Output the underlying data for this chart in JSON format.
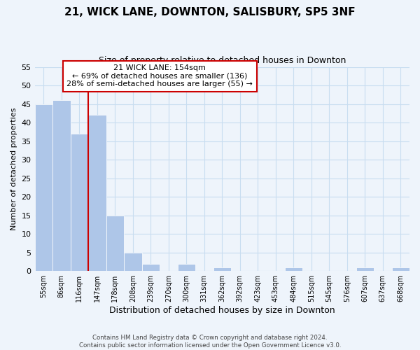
{
  "title": "21, WICK LANE, DOWNTON, SALISBURY, SP5 3NF",
  "subtitle": "Size of property relative to detached houses in Downton",
  "xlabel": "Distribution of detached houses by size in Downton",
  "ylabel": "Number of detached properties",
  "bin_labels": [
    "55sqm",
    "86sqm",
    "116sqm",
    "147sqm",
    "178sqm",
    "208sqm",
    "239sqm",
    "270sqm",
    "300sqm",
    "331sqm",
    "362sqm",
    "392sqm",
    "423sqm",
    "453sqm",
    "484sqm",
    "515sqm",
    "545sqm",
    "576sqm",
    "607sqm",
    "637sqm",
    "668sqm"
  ],
  "bar_values": [
    45,
    46,
    37,
    42,
    15,
    5,
    2,
    0,
    2,
    0,
    1,
    0,
    0,
    0,
    1,
    0,
    0,
    0,
    1,
    0,
    1
  ],
  "bar_color": "#aec6e8",
  "bar_edge_color": "white",
  "grid_color": "#c8ddf0",
  "property_line_x": 3,
  "annotation_line1": "21 WICK LANE: 154sqm",
  "annotation_line2": "← 69% of detached houses are smaller (136)",
  "annotation_line3": "28% of semi-detached houses are larger (55) →",
  "annotation_box_color": "white",
  "annotation_box_edge": "#cc0000",
  "vline_color": "#cc0000",
  "footer_line1": "Contains HM Land Registry data © Crown copyright and database right 2024.",
  "footer_line2": "Contains public sector information licensed under the Open Government Licence v3.0.",
  "ylim": [
    0,
    55
  ],
  "yticks": [
    0,
    5,
    10,
    15,
    20,
    25,
    30,
    35,
    40,
    45,
    50,
    55
  ],
  "bg_color": "#eef4fb"
}
